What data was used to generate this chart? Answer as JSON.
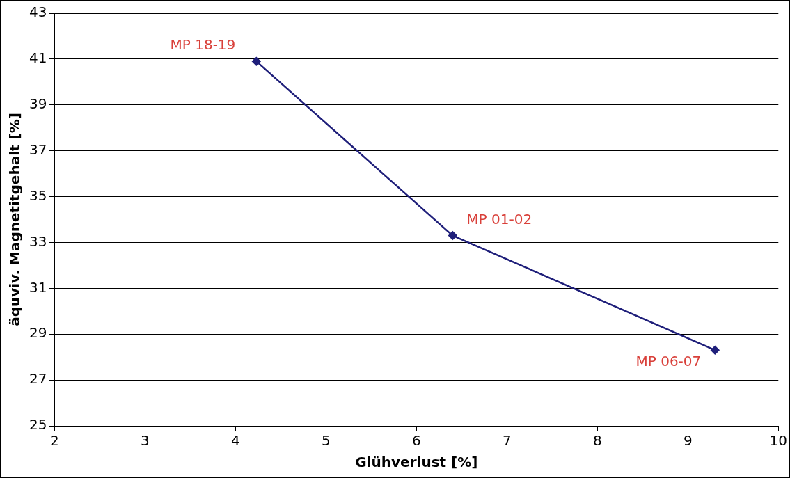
{
  "chart_data": {
    "type": "line",
    "xlabel": "Glühverlust [%]",
    "ylabel": "äquviv. Magnetitgehalt [%]",
    "x": [
      4.23,
      6.4,
      9.3
    ],
    "series": [
      {
        "color": "#1f1f7a",
        "values": [
          40.9,
          33.3,
          28.3
        ]
      }
    ],
    "xlim": [
      2,
      10
    ],
    "xticks": [
      2,
      3,
      4,
      5,
      6,
      7,
      8,
      9,
      10
    ],
    "ylim": [
      25,
      43
    ],
    "yticks": [
      25,
      27,
      29,
      31,
      33,
      35,
      37,
      39,
      41,
      43
    ],
    "grid": "y",
    "legend": false,
    "marker": "diamond",
    "line_style": "solid",
    "annotations": [
      {
        "text": "MP 18-19",
        "x": 4.23,
        "y": 40.9
      },
      {
        "text": "MP 01-02",
        "x": 6.4,
        "y": 33.3
      },
      {
        "text": "MP 06-07",
        "x": 9.3,
        "y": 28.3
      }
    ]
  }
}
